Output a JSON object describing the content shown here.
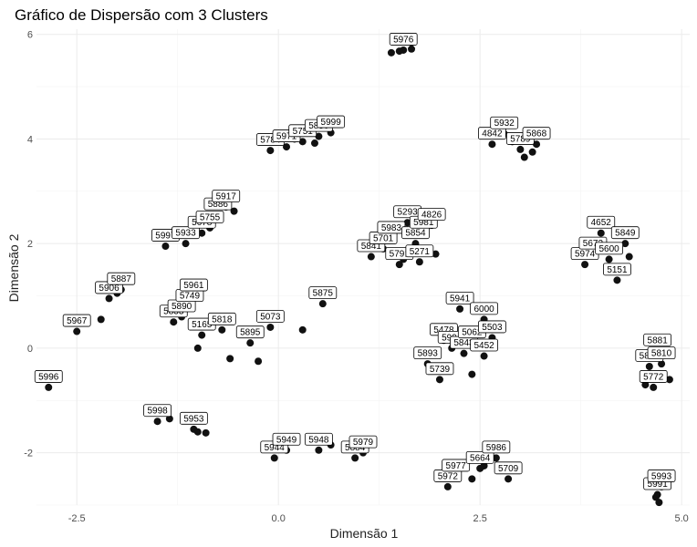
{
  "chart_data": {
    "type": "scatter",
    "title": "Gráfico de Dispersão com 3 Clusters",
    "xlabel": "Dimensão 1",
    "ylabel": "Dimensão 2",
    "xlim": [
      -3.0,
      5.1
    ],
    "ylim": [
      -3.0,
      6.1
    ],
    "x_ticks": [
      -2.5,
      0.0,
      2.5,
      5.0
    ],
    "x_tick_labels": [
      "-2.5",
      "0.0",
      "2.5",
      "5.0"
    ],
    "y_ticks": [
      -2,
      0,
      2,
      4,
      6
    ],
    "y_tick_labels": [
      "-2",
      "0",
      "2",
      "4",
      "6"
    ],
    "grid": true,
    "legend": "none",
    "point_color": "#111111",
    "points": [
      {
        "x": -2.85,
        "y": -0.75,
        "label": "5996"
      },
      {
        "x": -2.5,
        "y": 0.32,
        "label": "5967"
      },
      {
        "x": -2.2,
        "y": 0.55,
        "label": ""
      },
      {
        "x": -2.1,
        "y": 0.95,
        "label": "5906"
      },
      {
        "x": -2.0,
        "y": 1.05,
        "label": ""
      },
      {
        "x": -1.95,
        "y": 1.12,
        "label": "5887"
      },
      {
        "x": -1.4,
        "y": 1.95,
        "label": "5997"
      },
      {
        "x": -1.15,
        "y": 2.0,
        "label": "5933"
      },
      {
        "x": -0.95,
        "y": 2.2,
        "label": "5678"
      },
      {
        "x": -0.85,
        "y": 2.3,
        "label": "5755"
      },
      {
        "x": -0.75,
        "y": 2.55,
        "label": "5886"
      },
      {
        "x": -0.65,
        "y": 2.7,
        "label": "5917"
      },
      {
        "x": -0.55,
        "y": 2.62,
        "label": ""
      },
      {
        "x": -1.5,
        "y": -1.4,
        "label": "5998"
      },
      {
        "x": -1.35,
        "y": -1.35,
        "label": ""
      },
      {
        "x": -1.05,
        "y": -1.55,
        "label": "5953"
      },
      {
        "x": -0.9,
        "y": -1.62,
        "label": ""
      },
      {
        "x": -1.0,
        "y": -1.6,
        "label": ""
      },
      {
        "x": -0.1,
        "y": 3.78,
        "label": "5784"
      },
      {
        "x": 0.1,
        "y": 3.85,
        "label": "5971"
      },
      {
        "x": 0.3,
        "y": 3.95,
        "label": "5751"
      },
      {
        "x": 0.5,
        "y": 4.05,
        "label": "5850"
      },
      {
        "x": 0.65,
        "y": 4.12,
        "label": "5999"
      },
      {
        "x": 0.2,
        "y": 4.0,
        "label": ""
      },
      {
        "x": 0.45,
        "y": 3.92,
        "label": ""
      },
      {
        "x": -1.0,
        "y": 0.0,
        "label": ""
      },
      {
        "x": -1.3,
        "y": 0.5,
        "label": "5833"
      },
      {
        "x": -1.2,
        "y": 0.6,
        "label": "5890"
      },
      {
        "x": -1.1,
        "y": 0.8,
        "label": "5749"
      },
      {
        "x": -1.05,
        "y": 1.0,
        "label": "5961"
      },
      {
        "x": -0.95,
        "y": 0.25,
        "label": "5165"
      },
      {
        "x": -0.7,
        "y": 0.35,
        "label": "5818"
      },
      {
        "x": -0.6,
        "y": -0.2,
        "label": ""
      },
      {
        "x": -0.35,
        "y": 0.1,
        "label": "5895"
      },
      {
        "x": -0.25,
        "y": -0.25,
        "label": ""
      },
      {
        "x": -0.1,
        "y": 0.4,
        "label": "5073"
      },
      {
        "x": 0.3,
        "y": 0.35,
        "label": ""
      },
      {
        "x": 0.55,
        "y": 0.85,
        "label": "5875"
      },
      {
        "x": -0.05,
        "y": -2.1,
        "label": "5944"
      },
      {
        "x": 0.1,
        "y": -1.95,
        "label": "5949"
      },
      {
        "x": 0.5,
        "y": -1.95,
        "label": "5948"
      },
      {
        "x": 0.65,
        "y": -1.85,
        "label": ""
      },
      {
        "x": 0.95,
        "y": -2.1,
        "label": "5884"
      },
      {
        "x": 1.05,
        "y": -2.0,
        "label": "5979"
      },
      {
        "x": 1.15,
        "y": 1.75,
        "label": "5841"
      },
      {
        "x": 1.3,
        "y": 1.9,
        "label": "5701"
      },
      {
        "x": 1.4,
        "y": 2.1,
        "label": "5983"
      },
      {
        "x": 1.5,
        "y": 1.6,
        "label": "5791"
      },
      {
        "x": 1.6,
        "y": 2.4,
        "label": "5293"
      },
      {
        "x": 1.7,
        "y": 2.0,
        "label": "5854"
      },
      {
        "x": 1.75,
        "y": 1.65,
        "label": "5271"
      },
      {
        "x": 1.8,
        "y": 2.2,
        "label": "5981"
      },
      {
        "x": 1.9,
        "y": 2.35,
        "label": "4826"
      },
      {
        "x": 1.55,
        "y": 1.7,
        "label": ""
      },
      {
        "x": 1.95,
        "y": 1.8,
        "label": ""
      },
      {
        "x": 1.4,
        "y": 5.65,
        "label": ""
      },
      {
        "x": 1.55,
        "y": 5.7,
        "label": "5976"
      },
      {
        "x": 1.65,
        "y": 5.72,
        "label": ""
      },
      {
        "x": 1.5,
        "y": 5.68,
        "label": ""
      },
      {
        "x": 1.85,
        "y": -0.3,
        "label": "5893"
      },
      {
        "x": 2.05,
        "y": 0.15,
        "label": "5478"
      },
      {
        "x": 2.0,
        "y": -0.6,
        "label": "5739"
      },
      {
        "x": 2.15,
        "y": 0.0,
        "label": "5994"
      },
      {
        "x": 2.25,
        "y": 0.75,
        "label": "5941"
      },
      {
        "x": 2.3,
        "y": -0.1,
        "label": "5843"
      },
      {
        "x": 2.4,
        "y": 0.1,
        "label": "5062"
      },
      {
        "x": 2.55,
        "y": 0.55,
        "label": "6000"
      },
      {
        "x": 2.65,
        "y": 0.2,
        "label": "5503"
      },
      {
        "x": 2.55,
        "y": -0.15,
        "label": "5452"
      },
      {
        "x": 2.1,
        "y": -0.35,
        "label": ""
      },
      {
        "x": 2.4,
        "y": -0.5,
        "label": ""
      },
      {
        "x": 2.1,
        "y": -2.65,
        "label": "5972"
      },
      {
        "x": 2.2,
        "y": -2.45,
        "label": "5977"
      },
      {
        "x": 2.5,
        "y": -2.3,
        "label": "5664"
      },
      {
        "x": 2.55,
        "y": -2.25,
        "label": ""
      },
      {
        "x": 2.7,
        "y": -2.1,
        "label": "5986"
      },
      {
        "x": 2.85,
        "y": -2.5,
        "label": "5709"
      },
      {
        "x": 2.4,
        "y": -2.5,
        "label": ""
      },
      {
        "x": 2.65,
        "y": 3.9,
        "label": "4842"
      },
      {
        "x": 2.8,
        "y": 4.1,
        "label": "5932"
      },
      {
        "x": 3.0,
        "y": 3.8,
        "label": "5789"
      },
      {
        "x": 3.2,
        "y": 3.9,
        "label": "5868"
      },
      {
        "x": 3.05,
        "y": 3.65,
        "label": ""
      },
      {
        "x": 2.9,
        "y": 3.95,
        "label": ""
      },
      {
        "x": 3.15,
        "y": 3.75,
        "label": ""
      },
      {
        "x": 3.8,
        "y": 1.6,
        "label": "5974"
      },
      {
        "x": 3.9,
        "y": 1.8,
        "label": "5672"
      },
      {
        "x": 4.0,
        "y": 2.2,
        "label": "4652"
      },
      {
        "x": 4.1,
        "y": 1.7,
        "label": "5600"
      },
      {
        "x": 4.2,
        "y": 1.3,
        "label": "5151"
      },
      {
        "x": 4.3,
        "y": 2.0,
        "label": "5849"
      },
      {
        "x": 4.25,
        "y": 1.5,
        "label": ""
      },
      {
        "x": 4.35,
        "y": 1.75,
        "label": ""
      },
      {
        "x": 4.6,
        "y": -0.35,
        "label": "5819"
      },
      {
        "x": 4.7,
        "y": -0.05,
        "label": "5881"
      },
      {
        "x": 4.75,
        "y": -0.3,
        "label": "5810"
      },
      {
        "x": 4.65,
        "y": -0.75,
        "label": "5772"
      },
      {
        "x": 4.85,
        "y": -0.6,
        "label": ""
      },
      {
        "x": 4.55,
        "y": -0.7,
        "label": ""
      },
      {
        "x": 4.7,
        "y": -2.8,
        "label": "5991"
      },
      {
        "x": 4.75,
        "y": -2.65,
        "label": "5993"
      },
      {
        "x": 4.72,
        "y": -2.95,
        "label": ""
      },
      {
        "x": 4.68,
        "y": -2.85,
        "label": ""
      }
    ]
  }
}
